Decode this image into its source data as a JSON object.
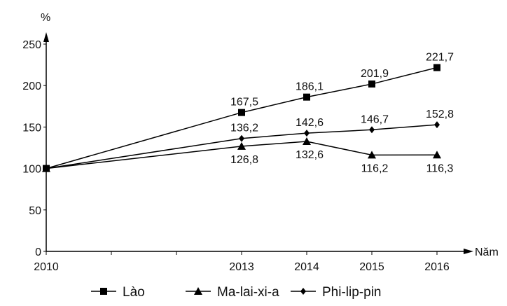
{
  "chart_data": {
    "type": "line",
    "title": "",
    "ylabel": "%",
    "xlabel": "Năm",
    "x": [
      2010,
      2013,
      2014,
      2015,
      2016
    ],
    "x_ticks": [
      "2010",
      "2013",
      "2014",
      "2015",
      "2016"
    ],
    "y_ticks": [
      "0",
      "50",
      "100",
      "150",
      "200",
      "250"
    ],
    "ylim": [
      0,
      250
    ],
    "xlim": [
      2010,
      2016
    ],
    "grid": false,
    "legend_position": "bottom",
    "series": [
      {
        "name": "Lào",
        "marker": "square",
        "values": [
          100,
          167.5,
          186.1,
          201.9,
          221.7
        ],
        "labels": [
          "",
          "167,5",
          "186,1",
          "201,9",
          "221,7"
        ],
        "label_side": "above"
      },
      {
        "name": "Ma-lai-xi-a",
        "marker": "triangle",
        "values": [
          100,
          126.8,
          132.6,
          116.2,
          116.3
        ],
        "labels": [
          "",
          "126,8",
          "132,6",
          "116,2",
          "116,3"
        ],
        "label_side": "below"
      },
      {
        "name": "Phi-lip-pin",
        "marker": "diamond",
        "values": [
          100,
          136.2,
          142.6,
          146.7,
          152.8
        ],
        "labels": [
          "",
          "136,2",
          "142,6",
          "146,7",
          "152,8"
        ],
        "label_side": "above"
      }
    ]
  }
}
